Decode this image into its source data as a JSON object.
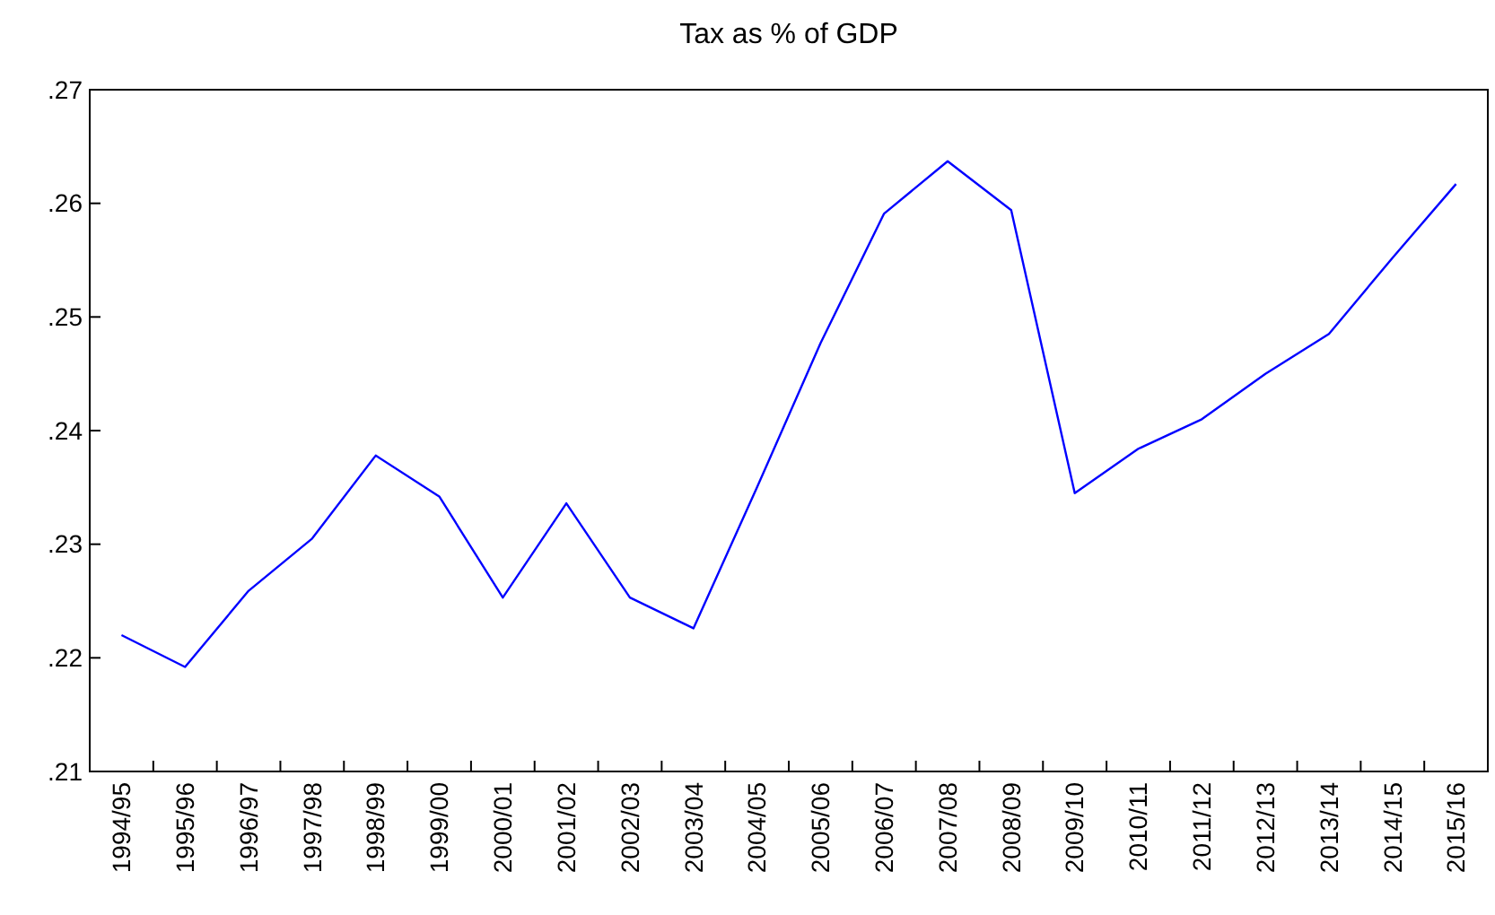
{
  "chart_data": {
    "type": "line",
    "title": "Tax as % of GDP",
    "categories": [
      "1994/95",
      "1995/96",
      "1996/97",
      "1997/98",
      "1998/99",
      "1999/00",
      "2000/01",
      "2001/02",
      "2002/03",
      "2003/04",
      "2004/05",
      "2005/06",
      "2006/07",
      "2007/08",
      "2008/09",
      "2009/10",
      "2010/11",
      "2011/12",
      "2012/13",
      "2013/14",
      "2014/15",
      "2015/16"
    ],
    "series": [
      {
        "color": "#0000ff",
        "values": [
          0.222,
          0.2192,
          0.2259,
          0.2305,
          0.2378,
          0.2342,
          0.2253,
          0.2336,
          0.2253,
          0.2226,
          0.235,
          0.2477,
          0.2591,
          0.2637,
          0.2594,
          0.2345,
          0.2384,
          0.241,
          0.245,
          0.2485,
          0.2552,
          0.2617
        ]
      }
    ],
    "ylim": [
      0.21,
      0.27
    ],
    "yticks": [
      {
        "value": 0.21,
        "label": ".21"
      },
      {
        "value": 0.22,
        "label": ".22"
      },
      {
        "value": 0.23,
        "label": ".23"
      },
      {
        "value": 0.24,
        "label": ".24"
      },
      {
        "value": 0.25,
        "label": ".25"
      },
      {
        "value": 0.26,
        "label": ".26"
      },
      {
        "value": 0.27,
        "label": ".27"
      }
    ],
    "grid": false,
    "marker": "none",
    "line_style": "solid"
  }
}
